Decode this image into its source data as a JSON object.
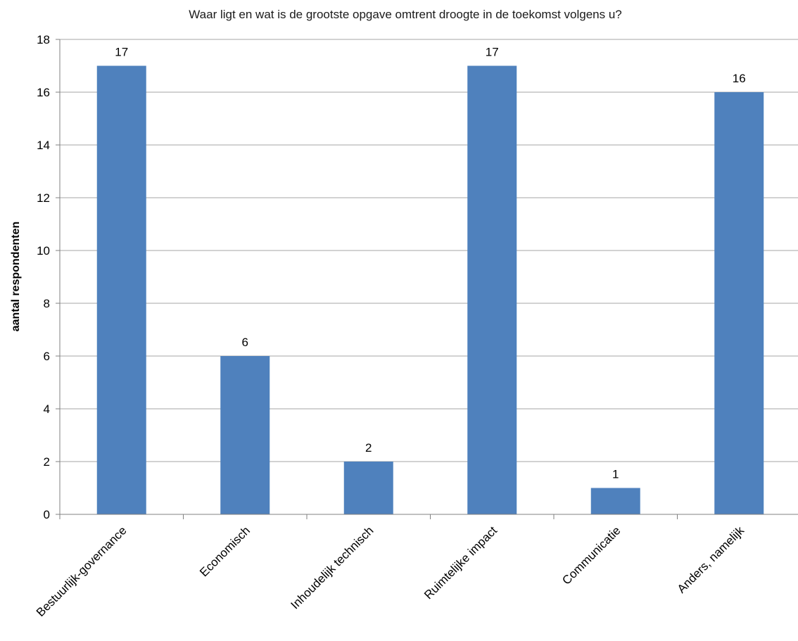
{
  "chart_data": {
    "type": "bar",
    "title": "Waar ligt en wat is de grootste opgave omtrent droogte in de toekomst volgens u?",
    "xlabel": "",
    "ylabel": "aantal respondenten",
    "categories": [
      "Bestuurlijk-governance",
      "Economisch",
      "Inhoudelijk technisch",
      "Ruimtelijke impact",
      "Communicatie",
      "Anders, namelijk"
    ],
    "values": [
      17,
      6,
      2,
      17,
      1,
      16
    ],
    "data_labels": [
      "17",
      "6",
      "2",
      "17",
      "1",
      "16"
    ],
    "ylim": [
      0,
      18
    ],
    "yticks": [
      "0",
      "2",
      "4",
      "6",
      "8",
      "10",
      "12",
      "14",
      "16",
      "18"
    ],
    "grid": true,
    "legend": "none",
    "colors": {
      "bar": "#4f81bd",
      "grid": "#a6a6a6",
      "axis": "#808080"
    }
  }
}
